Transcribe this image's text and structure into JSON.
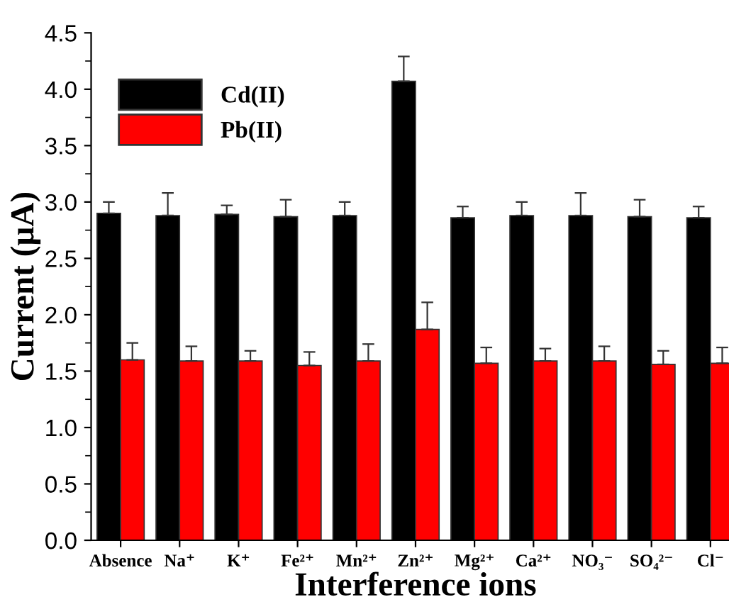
{
  "chart_data": {
    "type": "bar",
    "xlabel": "Interference ions",
    "ylabel": "Current (μA)",
    "categories": [
      "Absence",
      "Na⁺",
      "K⁺",
      "Fe²⁺",
      "Mn²⁺",
      "Zn²⁺",
      "Mg²⁺",
      "Ca²⁺",
      "NO₃⁻",
      "SO₄²⁻",
      "Cl⁻"
    ],
    "series": [
      {
        "name": "Cd(II)",
        "color": "#000000",
        "values": [
          2.9,
          2.88,
          2.89,
          2.87,
          2.88,
          4.07,
          2.86,
          2.88,
          2.88,
          2.87,
          2.86
        ],
        "errors": [
          0.1,
          0.2,
          0.08,
          0.15,
          0.12,
          0.22,
          0.1,
          0.12,
          0.2,
          0.15,
          0.1
        ]
      },
      {
        "name": "Pb(II)",
        "color": "#ff0000",
        "values": [
          1.6,
          1.59,
          1.59,
          1.55,
          1.59,
          1.87,
          1.57,
          1.59,
          1.59,
          1.56,
          1.57
        ],
        "errors": [
          0.15,
          0.13,
          0.09,
          0.12,
          0.15,
          0.24,
          0.14,
          0.11,
          0.13,
          0.12,
          0.14
        ]
      }
    ],
    "ylim": [
      0,
      4.5
    ],
    "yticks": [
      {
        "value": 0,
        "label": "0.0"
      },
      0.5,
      {
        "value": 1,
        "label": "1.0"
      },
      1.5,
      {
        "value": 2,
        "label": "2.0"
      },
      2.5,
      {
        "value": 3,
        "label": "3.0"
      },
      3.5,
      {
        "value": 4,
        "label": "4.0"
      },
      4.5
    ],
    "grid": false,
    "legend": "top left"
  }
}
